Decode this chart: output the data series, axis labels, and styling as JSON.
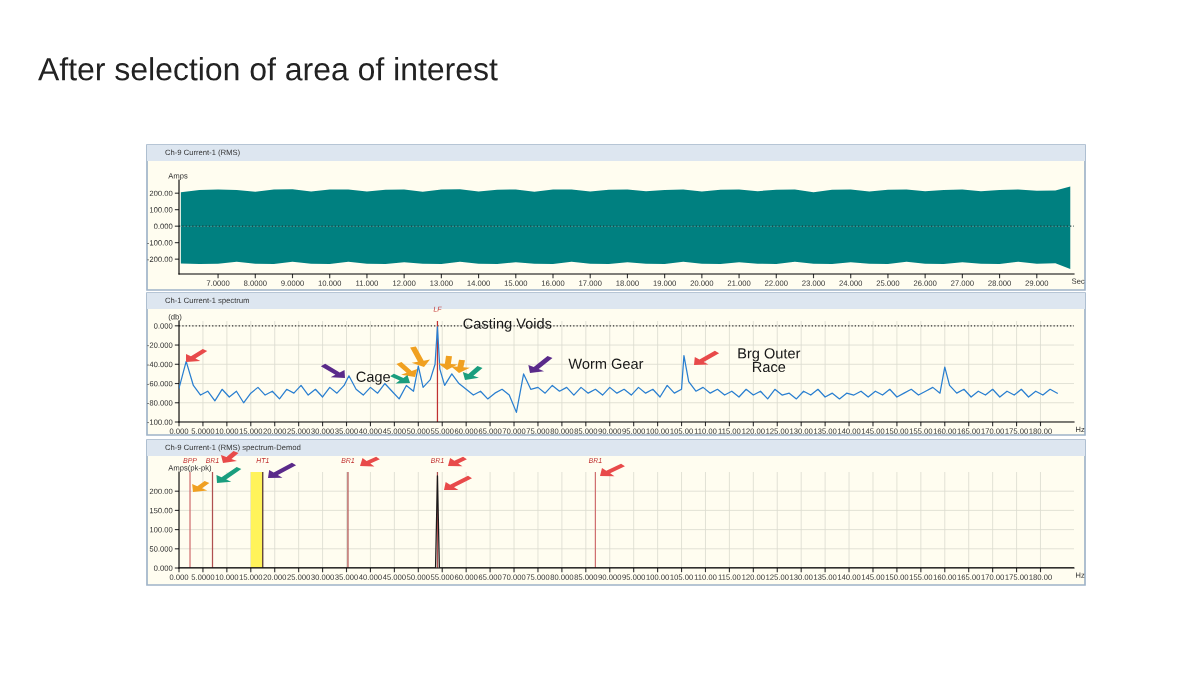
{
  "chart_data": [
    {
      "type": "area",
      "title": "After selection of area of interest",
      "subtitle": "Ch-9 Current-1 (RMS)",
      "xlabel": "Sec",
      "ylabel": "Amps",
      "x": [
        6.0,
        6.5,
        7.0,
        7.5,
        8.0,
        8.5,
        9.0,
        9.5,
        10.0,
        10.5,
        11.0,
        11.5,
        12.0,
        12.5,
        13.0,
        13.5,
        14.0,
        14.5,
        15.0,
        15.5,
        16.0,
        16.5,
        17.0,
        17.5,
        18.0,
        18.5,
        19.0,
        19.5,
        20.0,
        20.5,
        21.0,
        21.5,
        22.0,
        22.5,
        23.0,
        23.5,
        24.0,
        24.5,
        25.0,
        25.5,
        26.0,
        26.5,
        27.0,
        27.5,
        28.0,
        28.5,
        29.0,
        29.5,
        29.9
      ],
      "series": [
        {
          "color": "#008080",
          "values": [
            205,
            220,
            222,
            220,
            208,
            222,
            224,
            210,
            222,
            223,
            210,
            221,
            223,
            209,
            222,
            224,
            210,
            221,
            223,
            208,
            222,
            223,
            210,
            221,
            222,
            212,
            220,
            222,
            210,
            221,
            222,
            212,
            221,
            222,
            205,
            221,
            222,
            210,
            221,
            222,
            212,
            220,
            222,
            212,
            220,
            222,
            215,
            216,
            240
          ]
        },
        {
          "color": "#008080",
          "values": [
            -226,
            -230,
            -228,
            -215,
            -228,
            -230,
            -216,
            -228,
            -229,
            -215,
            -228,
            -230,
            -218,
            -228,
            -229,
            -216,
            -228,
            -230,
            -218,
            -228,
            -229,
            -216,
            -228,
            -230,
            -218,
            -228,
            -229,
            -216,
            -228,
            -230,
            -218,
            -228,
            -229,
            -216,
            -228,
            -230,
            -218,
            -228,
            -229,
            -216,
            -228,
            -230,
            -218,
            -228,
            -229,
            -216,
            -228,
            -225,
            -260
          ]
        }
      ],
      "xlim": [
        5.95,
        30
      ],
      "ylim": [
        -290,
        280
      ],
      "xticks": [
        {
          "value": 7,
          "label": "7.0000"
        },
        {
          "value": 8,
          "label": "8.0000"
        },
        {
          "value": 9,
          "label": "9.0000"
        },
        {
          "value": 10,
          "label": "10.000"
        },
        {
          "value": 11,
          "label": "11.000"
        },
        {
          "value": 12,
          "label": "12.000"
        },
        {
          "value": 13,
          "label": "13.000"
        },
        {
          "value": 14,
          "label": "14.000"
        },
        {
          "value": 15,
          "label": "15.000"
        },
        {
          "value": 16,
          "label": "16.000"
        },
        {
          "value": 17,
          "label": "17.000"
        },
        {
          "value": 18,
          "label": "18.000"
        },
        {
          "value": 19,
          "label": "19.000"
        },
        {
          "value": 20,
          "label": "20.000"
        },
        {
          "value": 21,
          "label": "21.000"
        },
        {
          "value": 22,
          "label": "22.000"
        },
        {
          "value": 23,
          "label": "23.000"
        },
        {
          "value": 24,
          "label": "24.000"
        },
        {
          "value": 25,
          "label": "25.000"
        },
        {
          "value": 26,
          "label": "26.000"
        },
        {
          "value": 27,
          "label": "27.000"
        },
        {
          "value": 28,
          "label": "28.000"
        },
        {
          "value": 29,
          "label": "29.000"
        }
      ],
      "yticks": [
        {
          "value": -200,
          "label": "-200.00"
        },
        {
          "value": -100,
          "label": "-100.00"
        },
        {
          "value": 0,
          "label": "0.000"
        },
        {
          "value": 100,
          "label": "100.00"
        },
        {
          "value": 200,
          "label": "200.00"
        }
      ],
      "ref_lines": [
        {
          "axis": "y",
          "value": 0,
          "color": "#1a3a3a",
          "line_style": "dotted"
        }
      ],
      "grid": false
    },
    {
      "type": "line",
      "subtitle": "Ch-1 Current-1 spectrum",
      "xlabel": "Hz",
      "ylabel": "(db)",
      "x": [
        0,
        1.5,
        3,
        4.5,
        6,
        7.5,
        9,
        10.5,
        12,
        13.5,
        15,
        16.5,
        18,
        19.5,
        21,
        22.5,
        24,
        25.5,
        27,
        28.5,
        30,
        31.5,
        33,
        34.5,
        35.5,
        37,
        38.5,
        40,
        41.5,
        43,
        44.5,
        46,
        47.5,
        49,
        50,
        51,
        52.5,
        53.5,
        54,
        54.5,
        55.5,
        57,
        58.5,
        60,
        61.5,
        63,
        64.5,
        66,
        67.5,
        69,
        70.5,
        72,
        73.5,
        75,
        76.5,
        78,
        79.5,
        81,
        82.5,
        84,
        85.5,
        87,
        88.5,
        90,
        91.5,
        93,
        94.5,
        96,
        97.5,
        99,
        100.5,
        102,
        103.5,
        105,
        105.5,
        106.5,
        108,
        109.5,
        111,
        112.5,
        114,
        115.5,
        117,
        118.5,
        120,
        121.5,
        123,
        124.5,
        126,
        127.5,
        129,
        130.5,
        132,
        133.5,
        135,
        136.5,
        138,
        139.5,
        141,
        142.5,
        144,
        145.5,
        147,
        148.5,
        150,
        151.5,
        153,
        154.5,
        156,
        157.5,
        159,
        160,
        161,
        162.5,
        164,
        165.5,
        167,
        168.5,
        170,
        171.5,
        173,
        174.5,
        176,
        177.5,
        179,
        180.5,
        182,
        183.5
      ],
      "series": [
        {
          "color": "#2a7fd0",
          "values": [
            -65,
            -37,
            -62,
            -72,
            -68,
            -78,
            -66,
            -74,
            -68,
            -80,
            -70,
            -64,
            -72,
            -68,
            -76,
            -66,
            -70,
            -62,
            -72,
            -66,
            -74,
            -64,
            -70,
            -62,
            -52,
            -66,
            -72,
            -64,
            -70,
            -60,
            -68,
            -76,
            -62,
            -68,
            -42,
            -64,
            -56,
            -40,
            -1,
            -45,
            -62,
            -50,
            -60,
            -66,
            -72,
            -68,
            -76,
            -70,
            -66,
            -72,
            -90,
            -50,
            -66,
            -64,
            -70,
            -62,
            -68,
            -64,
            -72,
            -64,
            -70,
            -66,
            -72,
            -64,
            -70,
            -66,
            -72,
            -64,
            -70,
            -66,
            -74,
            -62,
            -70,
            -66,
            -31,
            -58,
            -68,
            -64,
            -70,
            -66,
            -72,
            -68,
            -74,
            -66,
            -72,
            -68,
            -76,
            -66,
            -72,
            -70,
            -76,
            -68,
            -72,
            -66,
            -74,
            -70,
            -76,
            -70,
            -72,
            -68,
            -74,
            -68,
            -72,
            -66,
            -74,
            -70,
            -66,
            -72,
            -68,
            -64,
            -70,
            -43,
            -62,
            -70,
            -66,
            -74,
            -68,
            -72,
            -66,
            -74,
            -68,
            -72,
            -66,
            -74,
            -68,
            -72,
            -66,
            -70
          ]
        }
      ],
      "xlim": [
        0,
        187
      ],
      "ylim": [
        -100,
        5
      ],
      "xticks": [
        {
          "value": 0,
          "label": "0.000"
        },
        {
          "value": 5,
          "label": "5.0000"
        },
        {
          "value": 10,
          "label": "10.000"
        },
        {
          "value": 15,
          "label": "15.000"
        },
        {
          "value": 20,
          "label": "20.000"
        },
        {
          "value": 25,
          "label": "25.000"
        },
        {
          "value": 30,
          "label": "30.000"
        },
        {
          "value": 35,
          "label": "35.000"
        },
        {
          "value": 40,
          "label": "40.000"
        },
        {
          "value": 45,
          "label": "45.000"
        },
        {
          "value": 50,
          "label": "50.000"
        },
        {
          "value": 55,
          "label": "55.000"
        },
        {
          "value": 60,
          "label": "60.000"
        },
        {
          "value": 65,
          "label": "65.000"
        },
        {
          "value": 70,
          "label": "70.000"
        },
        {
          "value": 75,
          "label": "75.000"
        },
        {
          "value": 80,
          "label": "80.000"
        },
        {
          "value": 85,
          "label": "85.000"
        },
        {
          "value": 90,
          "label": "90.000"
        },
        {
          "value": 95,
          "label": "95.000"
        },
        {
          "value": 100,
          "label": "100.00"
        },
        {
          "value": 105,
          "label": "105.00"
        },
        {
          "value": 110,
          "label": "110.00"
        },
        {
          "value": 115,
          "label": "115.00"
        },
        {
          "value": 120,
          "label": "120.00"
        },
        {
          "value": 125,
          "label": "125.00"
        },
        {
          "value": 130,
          "label": "130.00"
        },
        {
          "value": 135,
          "label": "135.00"
        },
        {
          "value": 140,
          "label": "140.00"
        },
        {
          "value": 145,
          "label": "145.00"
        },
        {
          "value": 150,
          "label": "150.00"
        },
        {
          "value": 155,
          "label": "155.00"
        },
        {
          "value": 160,
          "label": "160.00"
        },
        {
          "value": 165,
          "label": "165.00"
        },
        {
          "value": 170,
          "label": "170.00"
        },
        {
          "value": 175,
          "label": "175.00"
        },
        {
          "value": 180,
          "label": "180.00"
        }
      ],
      "yticks": [
        {
          "value": -100,
          "label": "-100.00"
        },
        {
          "value": -80,
          "label": "-80.000"
        },
        {
          "value": -60,
          "label": "-60.000"
        },
        {
          "value": -40,
          "label": "-40.000"
        },
        {
          "value": -20,
          "label": "-20.000"
        },
        {
          "value": 0,
          "label": "0.000"
        }
      ],
      "ref_lines": [
        {
          "axis": "y",
          "value": 0,
          "color": "#333333",
          "line_style": "dotted"
        },
        {
          "axis": "x",
          "value": 54,
          "label": "LF",
          "color": "#c03030",
          "line_style": "solid"
        }
      ],
      "annotations": [
        {
          "text": "Casting Voids",
          "x": 68.6,
          "y": 1
        },
        "Cage",
        "Worm Gear",
        "Brg Outer\nRace"
      ],
      "grid": true
    },
    {
      "type": "line",
      "subtitle": "Ch-9 Current-1 (RMS) spectrum-Demod",
      "xlabel": "Hz",
      "ylabel": "Amps(pk-pk)",
      "x": [
        0,
        53.6,
        54,
        54.4,
        187
      ],
      "series": [
        {
          "color": "#1a1a1a",
          "values": [
            0,
            0,
            240,
            0,
            0
          ]
        }
      ],
      "xlim": [
        0,
        187
      ],
      "ylim": [
        0,
        250
      ],
      "xticks": [
        {
          "value": 0,
          "label": "0.000"
        },
        {
          "value": 5,
          "label": "5.0000"
        },
        {
          "value": 10,
          "label": "10.000"
        },
        {
          "value": 15,
          "label": "15.000"
        },
        {
          "value": 20,
          "label": "20.000"
        },
        {
          "value": 25,
          "label": "25.000"
        },
        {
          "value": 30,
          "label": "30.000"
        },
        {
          "value": 35,
          "label": "35.000"
        },
        {
          "value": 40,
          "label": "40.000"
        },
        {
          "value": 45,
          "label": "45.000"
        },
        {
          "value": 50,
          "label": "50.000"
        },
        {
          "value": 55,
          "label": "55.000"
        },
        {
          "value": 60,
          "label": "60.000"
        },
        {
          "value": 65,
          "label": "65.000"
        },
        {
          "value": 70,
          "label": "70.000"
        },
        {
          "value": 75,
          "label": "75.000"
        },
        {
          "value": 80,
          "label": "80.000"
        },
        {
          "value": 85,
          "label": "85.000"
        },
        {
          "value": 90,
          "label": "90.000"
        },
        {
          "value": 95,
          "label": "95.000"
        },
        {
          "value": 100,
          "label": "100.00"
        },
        {
          "value": 105,
          "label": "105.00"
        },
        {
          "value": 110,
          "label": "110.00"
        },
        {
          "value": 115,
          "label": "115.00"
        },
        {
          "value": 120,
          "label": "120.00"
        },
        {
          "value": 125,
          "label": "125.00"
        },
        {
          "value": 130,
          "label": "130.00"
        },
        {
          "value": 135,
          "label": "135.00"
        },
        {
          "value": 140,
          "label": "140.00"
        },
        {
          "value": 145,
          "label": "145.00"
        },
        {
          "value": 150,
          "label": "150.00"
        },
        {
          "value": 155,
          "label": "155.00"
        },
        {
          "value": 160,
          "label": "160.00"
        },
        {
          "value": 165,
          "label": "165.00"
        },
        {
          "value": 170,
          "label": "170.00"
        },
        {
          "value": 175,
          "label": "175.00"
        },
        {
          "value": 180,
          "label": "180.00"
        }
      ],
      "yticks": [
        {
          "value": 0,
          "label": "0.000"
        },
        {
          "value": 50,
          "label": "50.000"
        },
        {
          "value": 100,
          "label": "100.00"
        },
        {
          "value": 150,
          "label": "150.00"
        },
        {
          "value": 200,
          "label": "200.00"
        }
      ],
      "ref_lines": [
        {
          "axis": "x",
          "value": 2.3,
          "label": "BPP",
          "color": "#d07070",
          "line_style": "solid"
        },
        {
          "axis": "x",
          "value": 7,
          "label": "BR1",
          "color": "#b05050",
          "line_style": "solid"
        },
        {
          "axis": "x",
          "value": 17.5,
          "label": "HT1",
          "color": "#503030",
          "line_style": "solid"
        },
        {
          "axis": "x",
          "value": 35.3,
          "label": "BR1",
          "color": "#b05050",
          "line_style": "solid"
        },
        {
          "axis": "x",
          "value": 54,
          "label": "BR1",
          "color": "#b05050",
          "line_style": "solid"
        },
        {
          "axis": "x",
          "value": 87,
          "label": "BR1",
          "color": "#d07070",
          "line_style": "solid"
        }
      ],
      "bands": [
        {
          "axis": "x",
          "from": 15,
          "to": 17.5,
          "color": "#fff35a"
        }
      ],
      "grid": true
    }
  ]
}
